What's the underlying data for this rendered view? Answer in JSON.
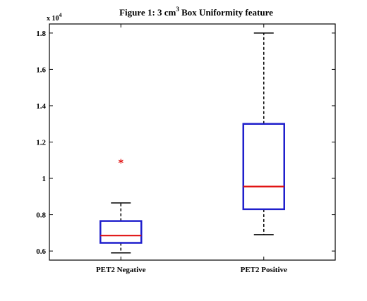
{
  "chart_data": {
    "type": "box",
    "title": {
      "prefix": "Figure 1: 3 cm",
      "superscript": "3",
      "suffix": " Box  Uniformity feature"
    },
    "y_exponent_label": "x 10",
    "y_exponent_power": "4",
    "ylim": [
      0.55,
      1.85
    ],
    "yticks": [
      {
        "value": 0.6,
        "label": "0.6"
      },
      {
        "value": 0.8,
        "label": "0.8"
      },
      {
        "value": 1.0,
        "label": "1"
      },
      {
        "value": 1.2,
        "label": "1.2"
      },
      {
        "value": 1.4,
        "label": "1.4"
      },
      {
        "value": 1.6,
        "label": "1.6"
      },
      {
        "value": 1.8,
        "label": "1.8"
      }
    ],
    "categories": [
      "PET2 Negative",
      "PET2 Positive"
    ],
    "boxes": [
      {
        "category": "PET2 Negative",
        "whisker_low": 0.59,
        "q1": 0.645,
        "median": 0.685,
        "q3": 0.765,
        "whisker_high": 0.865,
        "outliers": [
          1.085
        ]
      },
      {
        "category": "PET2 Positive",
        "whisker_low": 0.69,
        "q1": 0.83,
        "median": 0.955,
        "q3": 1.3,
        "whisker_high": 1.8,
        "outliers": []
      }
    ],
    "colors": {
      "box": "#1f1fcc",
      "median": "#e01010",
      "whisker": "#000000",
      "outlier": "#e01010"
    },
    "grid": false
  }
}
